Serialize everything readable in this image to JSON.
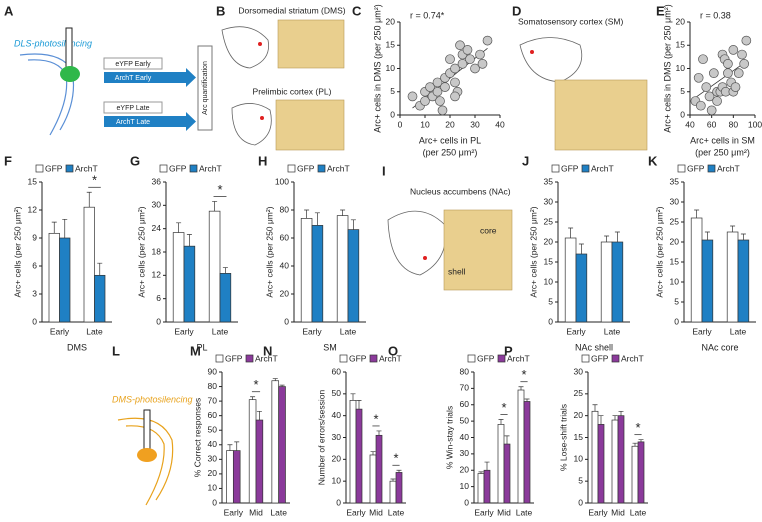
{
  "figure": {
    "A": {
      "letter": "A",
      "title": "DLS-photosilencing",
      "groups": [
        "eYFP Early",
        "ArchT Early",
        "eYFP Late",
        "ArchT Late"
      ],
      "output": "Arc quantification"
    },
    "B": {
      "letter": "B",
      "regions": [
        "Dorsomedial striatum (DMS)",
        "Prelimbic cortex (PL)"
      ]
    },
    "D": {
      "letter": "D",
      "region": "Somatosensory cortex (SM)"
    },
    "I": {
      "letter": "I",
      "region": "Nucleus accumbens (NAc)",
      "core": "core",
      "shell": "shell"
    },
    "L": {
      "letter": "L",
      "title": "DMS-photosilencing"
    }
  },
  "chart_data": [
    {
      "type": "scatter",
      "panel": "C",
      "annotation": "r = 0.74*",
      "xlabel": [
        "Arc+ cells in PL",
        "(per 250 μm²)"
      ],
      "ylabel": "Arc+ cells in DMS (per 250 μm²)",
      "x": [
        5,
        8,
        10,
        10,
        12,
        13,
        15,
        15,
        16,
        17,
        18,
        20,
        20,
        22,
        22,
        23,
        24,
        25,
        25,
        27,
        28,
        30,
        32,
        33,
        35,
        22,
        18
      ],
      "values": [
        4,
        2,
        3,
        5,
        6,
        4,
        7,
        5,
        3,
        1,
        8,
        9,
        12,
        10,
        7,
        5,
        15,
        11,
        13,
        14,
        12,
        10,
        13,
        11,
        16,
        4,
        6
      ],
      "color": "#c8c8c8",
      "xlim": [
        0,
        40
      ],
      "xticks": [
        0,
        10,
        20,
        30,
        40
      ],
      "ylim": [
        0,
        20
      ],
      "yticks": [
        0,
        5,
        10,
        15,
        20
      ]
    },
    {
      "type": "scatter",
      "panel": "E",
      "annotation": "r = 0.38",
      "xlabel": [
        "Arc+ cells in SM",
        "(per 250 μm²)"
      ],
      "ylabel": "Arc+ cells in DMS (per 250 μm²)",
      "x": [
        45,
        48,
        50,
        52,
        55,
        58,
        60,
        62,
        65,
        65,
        68,
        70,
        70,
        72,
        73,
        75,
        75,
        78,
        80,
        80,
        82,
        85,
        88,
        92,
        90
      ],
      "values": [
        3,
        8,
        2,
        12,
        6,
        4,
        1,
        9,
        5,
        3,
        5,
        6,
        13,
        12,
        5,
        9,
        11,
        7,
        5,
        14,
        6,
        9,
        13,
        16,
        11
      ],
      "color": "#c8c8c8",
      "xlim": [
        40,
        100
      ],
      "xticks": [
        40,
        60,
        80,
        100
      ],
      "ylim": [
        0,
        20
      ],
      "yticks": [
        0,
        5,
        10,
        15,
        20
      ]
    },
    {
      "type": "bar",
      "panel": "F",
      "ylabel": "Arc+ cells (per 250 μm²)",
      "xlabel": "DMS",
      "categories": [
        "Early",
        "Late"
      ],
      "series": [
        {
          "name": "GFP",
          "color": "#ffffff",
          "values": [
            9.5,
            12.3
          ],
          "errors": [
            1.2,
            1.6
          ]
        },
        {
          "name": "ArchT",
          "color": "#1f80c4",
          "values": [
            9,
            5
          ],
          "errors": [
            2,
            1.3
          ]
        }
      ],
      "significance": [
        null,
        "*"
      ],
      "ylim": [
        0,
        15
      ],
      "yticks": [
        0,
        3,
        6,
        9,
        12,
        15
      ]
    },
    {
      "type": "bar",
      "panel": "G",
      "ylabel": "Arc+ cells (per 250 μm²)",
      "xlabel": "PL",
      "categories": [
        "Early",
        "Late"
      ],
      "series": [
        {
          "name": "GFP",
          "color": "#ffffff",
          "values": [
            23,
            28.5
          ],
          "errors": [
            2.5,
            2.5
          ]
        },
        {
          "name": "ArchT",
          "color": "#1f80c4",
          "values": [
            19.5,
            12.5
          ],
          "errors": [
            3,
            1.5
          ]
        }
      ],
      "significance": [
        null,
        "*"
      ],
      "ylim": [
        0,
        36
      ],
      "yticks": [
        0,
        6,
        12,
        18,
        24,
        30,
        36
      ]
    },
    {
      "type": "bar",
      "panel": "H",
      "ylabel": "Arc+ cells (per 250 μm²)",
      "xlabel": "SM",
      "categories": [
        "Early",
        "Late"
      ],
      "series": [
        {
          "name": "GFP",
          "color": "#ffffff",
          "values": [
            74,
            76
          ],
          "errors": [
            6,
            4
          ]
        },
        {
          "name": "ArchT",
          "color": "#1f80c4",
          "values": [
            69,
            66
          ],
          "errors": [
            9,
            7
          ]
        }
      ],
      "significance": [
        null,
        null
      ],
      "ylim": [
        0,
        100
      ],
      "yticks": [
        0,
        20,
        40,
        60,
        80,
        100
      ]
    },
    {
      "type": "bar",
      "panel": "J",
      "ylabel": "Arc+ cells (per 250 μm²)",
      "xlabel": "NAc shell",
      "categories": [
        "Early",
        "Late"
      ],
      "series": [
        {
          "name": "GFP",
          "color": "#ffffff",
          "values": [
            21,
            20
          ],
          "errors": [
            2.5,
            1.5
          ]
        },
        {
          "name": "ArchT",
          "color": "#1f80c4",
          "values": [
            17,
            20
          ],
          "errors": [
            2.5,
            2.5
          ]
        }
      ],
      "significance": [
        null,
        null
      ],
      "ylim": [
        0,
        35
      ],
      "yticks": [
        0,
        5,
        10,
        15,
        20,
        25,
        30,
        35
      ]
    },
    {
      "type": "bar",
      "panel": "K",
      "ylabel": "Arc+ cells (per 250 μm²)",
      "xlabel": "NAc core",
      "categories": [
        "Early",
        "Late"
      ],
      "series": [
        {
          "name": "GFP",
          "color": "#ffffff",
          "values": [
            26,
            22.5
          ],
          "errors": [
            2,
            1.5
          ]
        },
        {
          "name": "ArchT",
          "color": "#1f80c4",
          "values": [
            20.5,
            20.5
          ],
          "errors": [
            2,
            1.5
          ]
        }
      ],
      "significance": [
        null,
        null
      ],
      "ylim": [
        0,
        35
      ],
      "yticks": [
        0,
        5,
        10,
        15,
        20,
        25,
        30,
        35
      ]
    },
    {
      "type": "bar",
      "panel": "M",
      "ylabel": "% Correct responses",
      "categories": [
        "Early",
        "Mid",
        "Late"
      ],
      "series": [
        {
          "name": "GFP",
          "color": "#ffffff",
          "values": [
            36,
            71,
            84
          ],
          "errors": [
            4,
            2,
            1.5
          ]
        },
        {
          "name": "ArchT",
          "color": "#8b3a9b",
          "values": [
            36,
            57,
            80
          ],
          "errors": [
            6,
            6,
            1
          ]
        }
      ],
      "significance": [
        null,
        "*",
        null
      ],
      "ylim": [
        0,
        90
      ],
      "yticks": [
        0,
        10,
        20,
        30,
        40,
        50,
        60,
        70,
        80,
        90
      ]
    },
    {
      "type": "bar",
      "panel": "N",
      "ylabel": "Number of errors/session",
      "categories": [
        "Early",
        "Mid",
        "Late"
      ],
      "series": [
        {
          "name": "GFP",
          "color": "#ffffff",
          "values": [
            47,
            22,
            10
          ],
          "errors": [
            3,
            1.5,
            1
          ]
        },
        {
          "name": "ArchT",
          "color": "#8b3a9b",
          "values": [
            43,
            31,
            14
          ],
          "errors": [
            4,
            2,
            1
          ]
        }
      ],
      "significance": [
        null,
        "*",
        "*"
      ],
      "ylim": [
        0,
        60
      ],
      "yticks": [
        0,
        10,
        20,
        30,
        40,
        50,
        60
      ]
    },
    {
      "type": "bar",
      "panel": "O",
      "ylabel": "% Win-stay trials",
      "categories": [
        "Early",
        "Mid",
        "Late"
      ],
      "series": [
        {
          "name": "GFP",
          "color": "#ffffff",
          "values": [
            18,
            48,
            69
          ],
          "errors": [
            1,
            3,
            2
          ]
        },
        {
          "name": "ArchT",
          "color": "#8b3a9b",
          "values": [
            20,
            36,
            62
          ],
          "errors": [
            5,
            5,
            1.5
          ]
        }
      ],
      "significance": [
        null,
        "*",
        "*"
      ],
      "ylim": [
        0,
        80
      ],
      "yticks": [
        0,
        10,
        20,
        30,
        40,
        50,
        60,
        70,
        80
      ]
    },
    {
      "type": "bar",
      "panel": "P",
      "ylabel": "% Lose-shift trials",
      "categories": [
        "Early",
        "Mid",
        "Late"
      ],
      "series": [
        {
          "name": "GFP",
          "color": "#ffffff",
          "values": [
            21,
            19,
            13
          ],
          "errors": [
            1.5,
            1,
            0.7
          ]
        },
        {
          "name": "ArchT",
          "color": "#8b3a9b",
          "values": [
            18,
            20,
            14
          ],
          "errors": [
            2,
            1,
            0.5
          ]
        }
      ],
      "significance": [
        null,
        null,
        "*"
      ],
      "ylim": [
        0,
        30
      ],
      "yticks": [
        0,
        5,
        10,
        15,
        20,
        25,
        30
      ]
    }
  ]
}
